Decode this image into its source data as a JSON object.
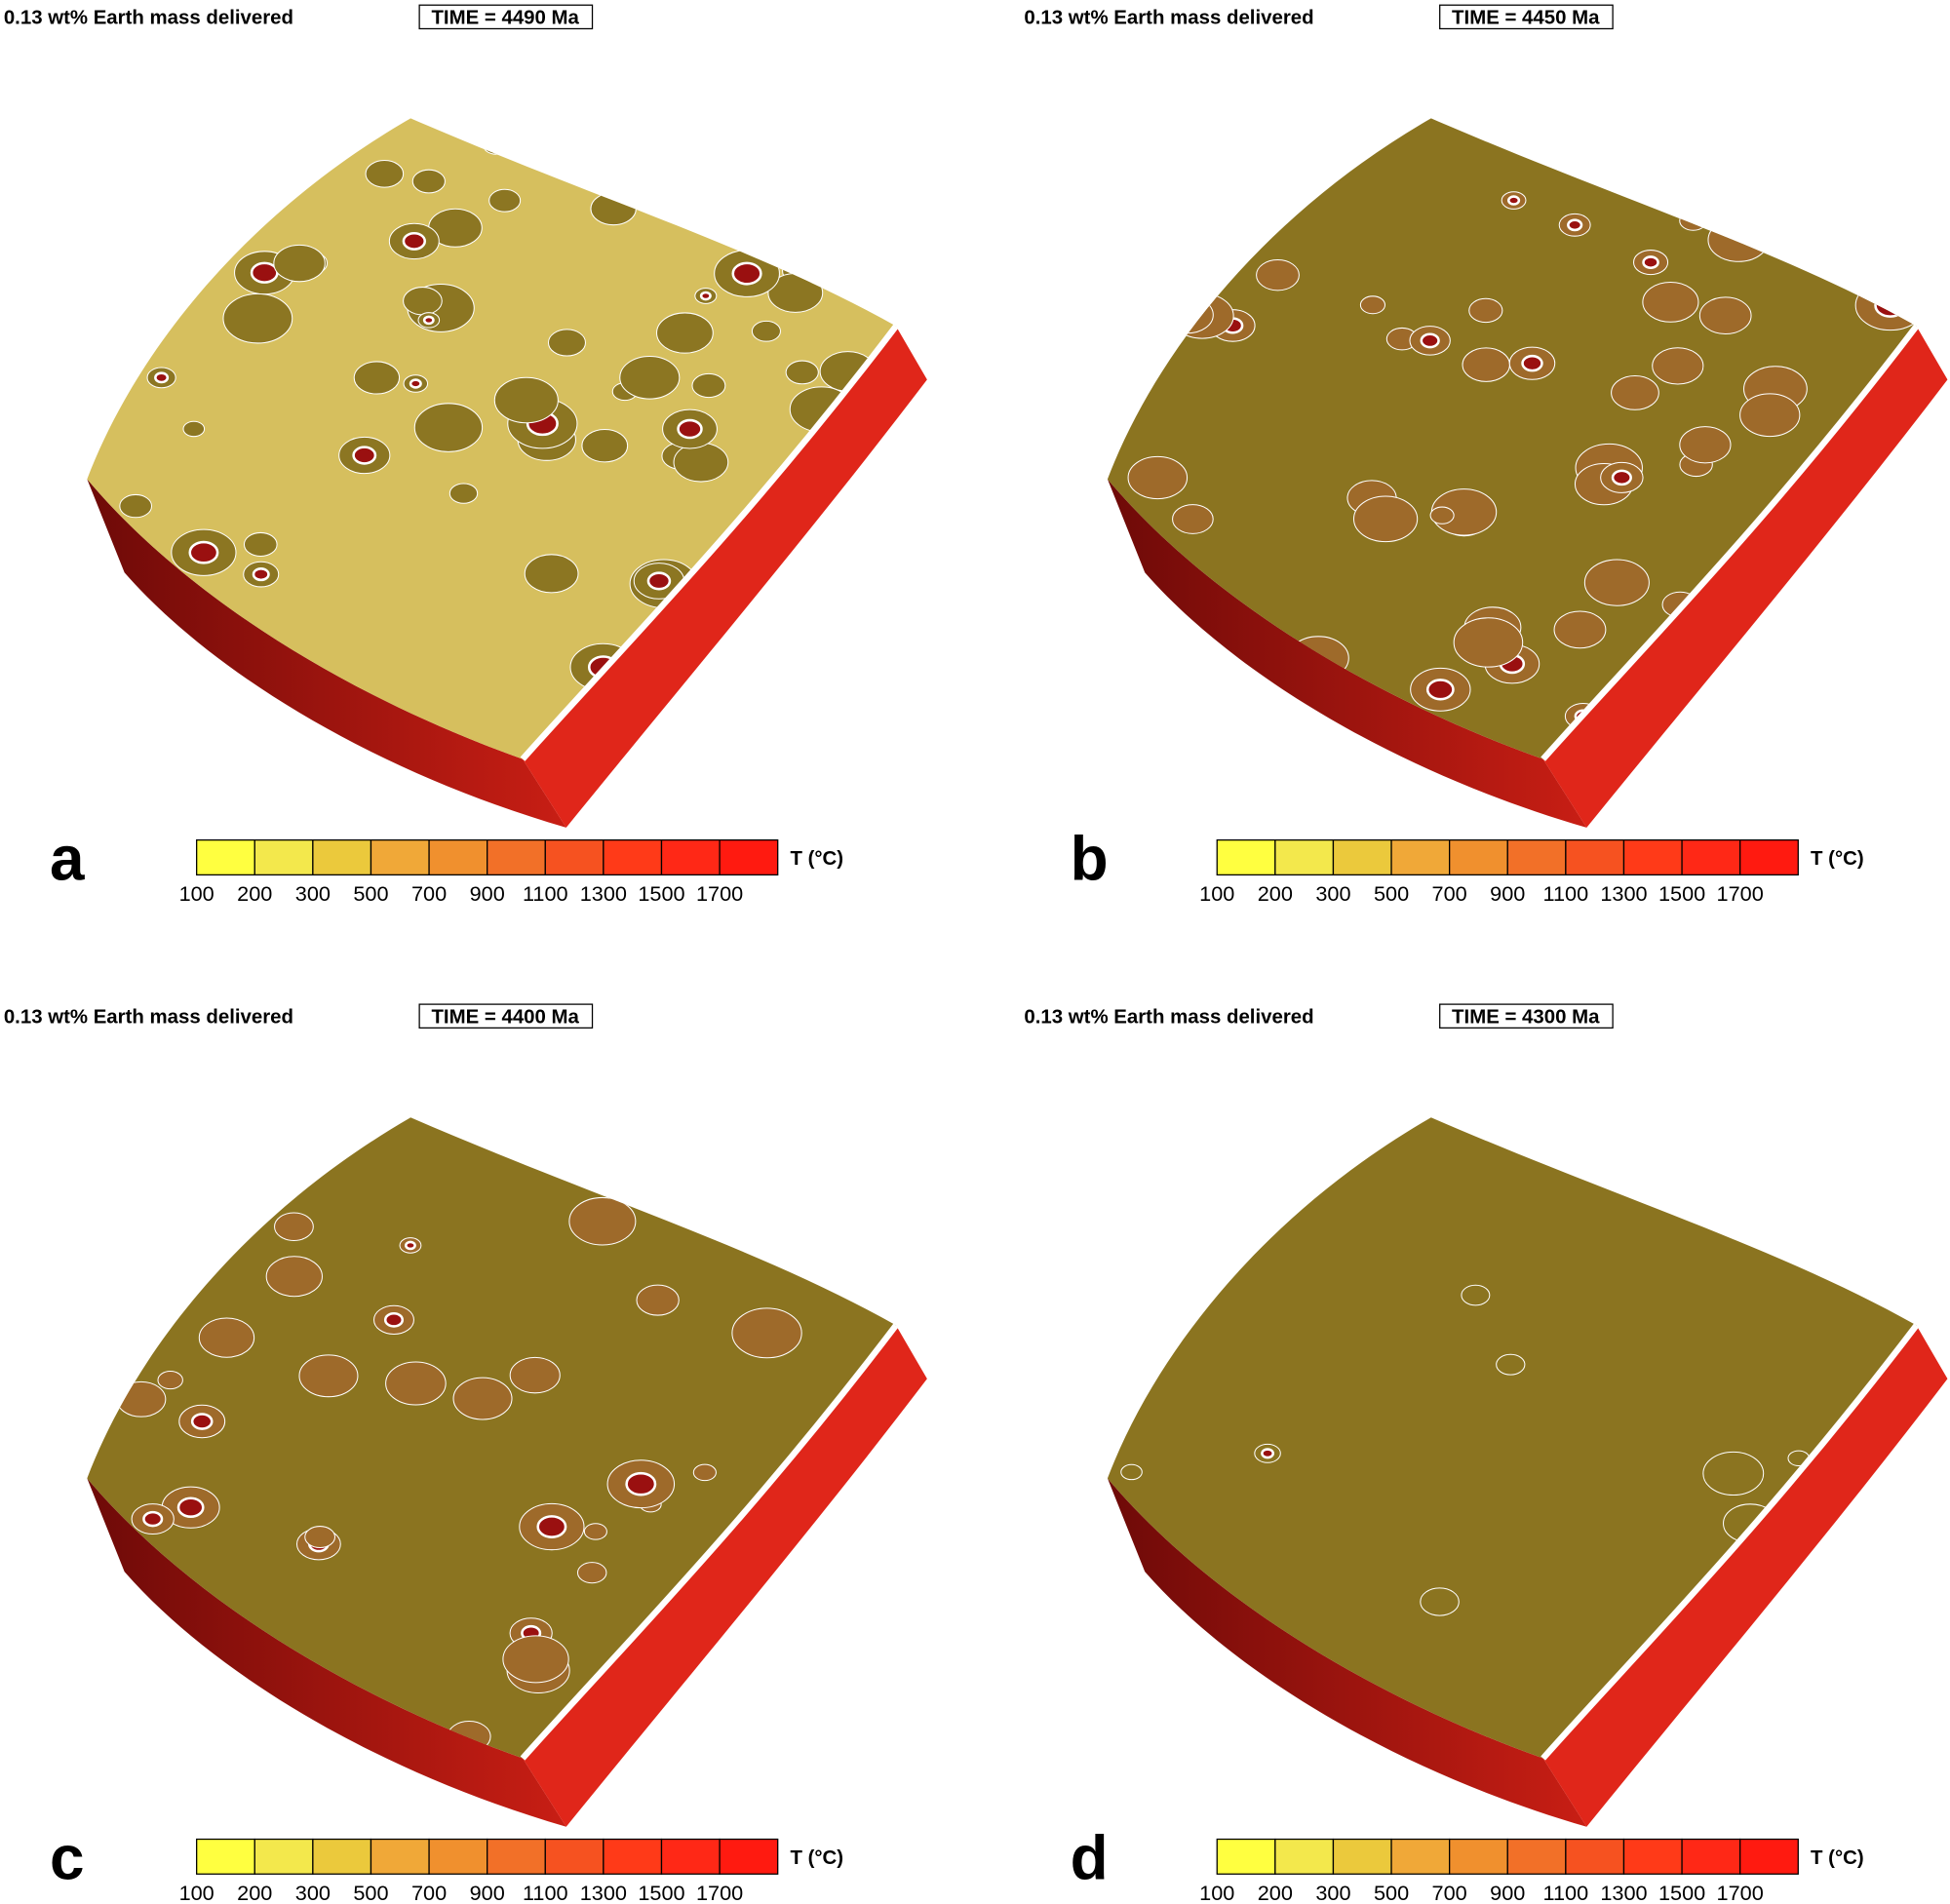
{
  "panels": [
    {
      "letter": "a",
      "caption": "0.13 wt% Earth mass delivered",
      "time": "TIME = 4490 Ma"
    },
    {
      "letter": "b",
      "caption": "0.13 wt% Earth mass delivered",
      "time": "TIME = 4450 Ma"
    },
    {
      "letter": "c",
      "caption": "0.13 wt% Earth mass delivered",
      "time": "TIME = 4400 Ma"
    },
    {
      "letter": "d",
      "caption": "0.13 wt% Earth mass delivered",
      "time": "TIME = 4300 Ma"
    }
  ],
  "colorbar": {
    "unit": "T (°C)",
    "ticks": [
      100,
      200,
      300,
      500,
      700,
      900,
      1100,
      1300,
      1500,
      1700
    ],
    "colors": [
      "#ffff40",
      "#f3e84c",
      "#ebc93c",
      "#f0a838",
      "#f0902e",
      "#f27028",
      "#f65220",
      "#ff3a18",
      "#ff2816",
      "#ff1a10"
    ]
  }
}
